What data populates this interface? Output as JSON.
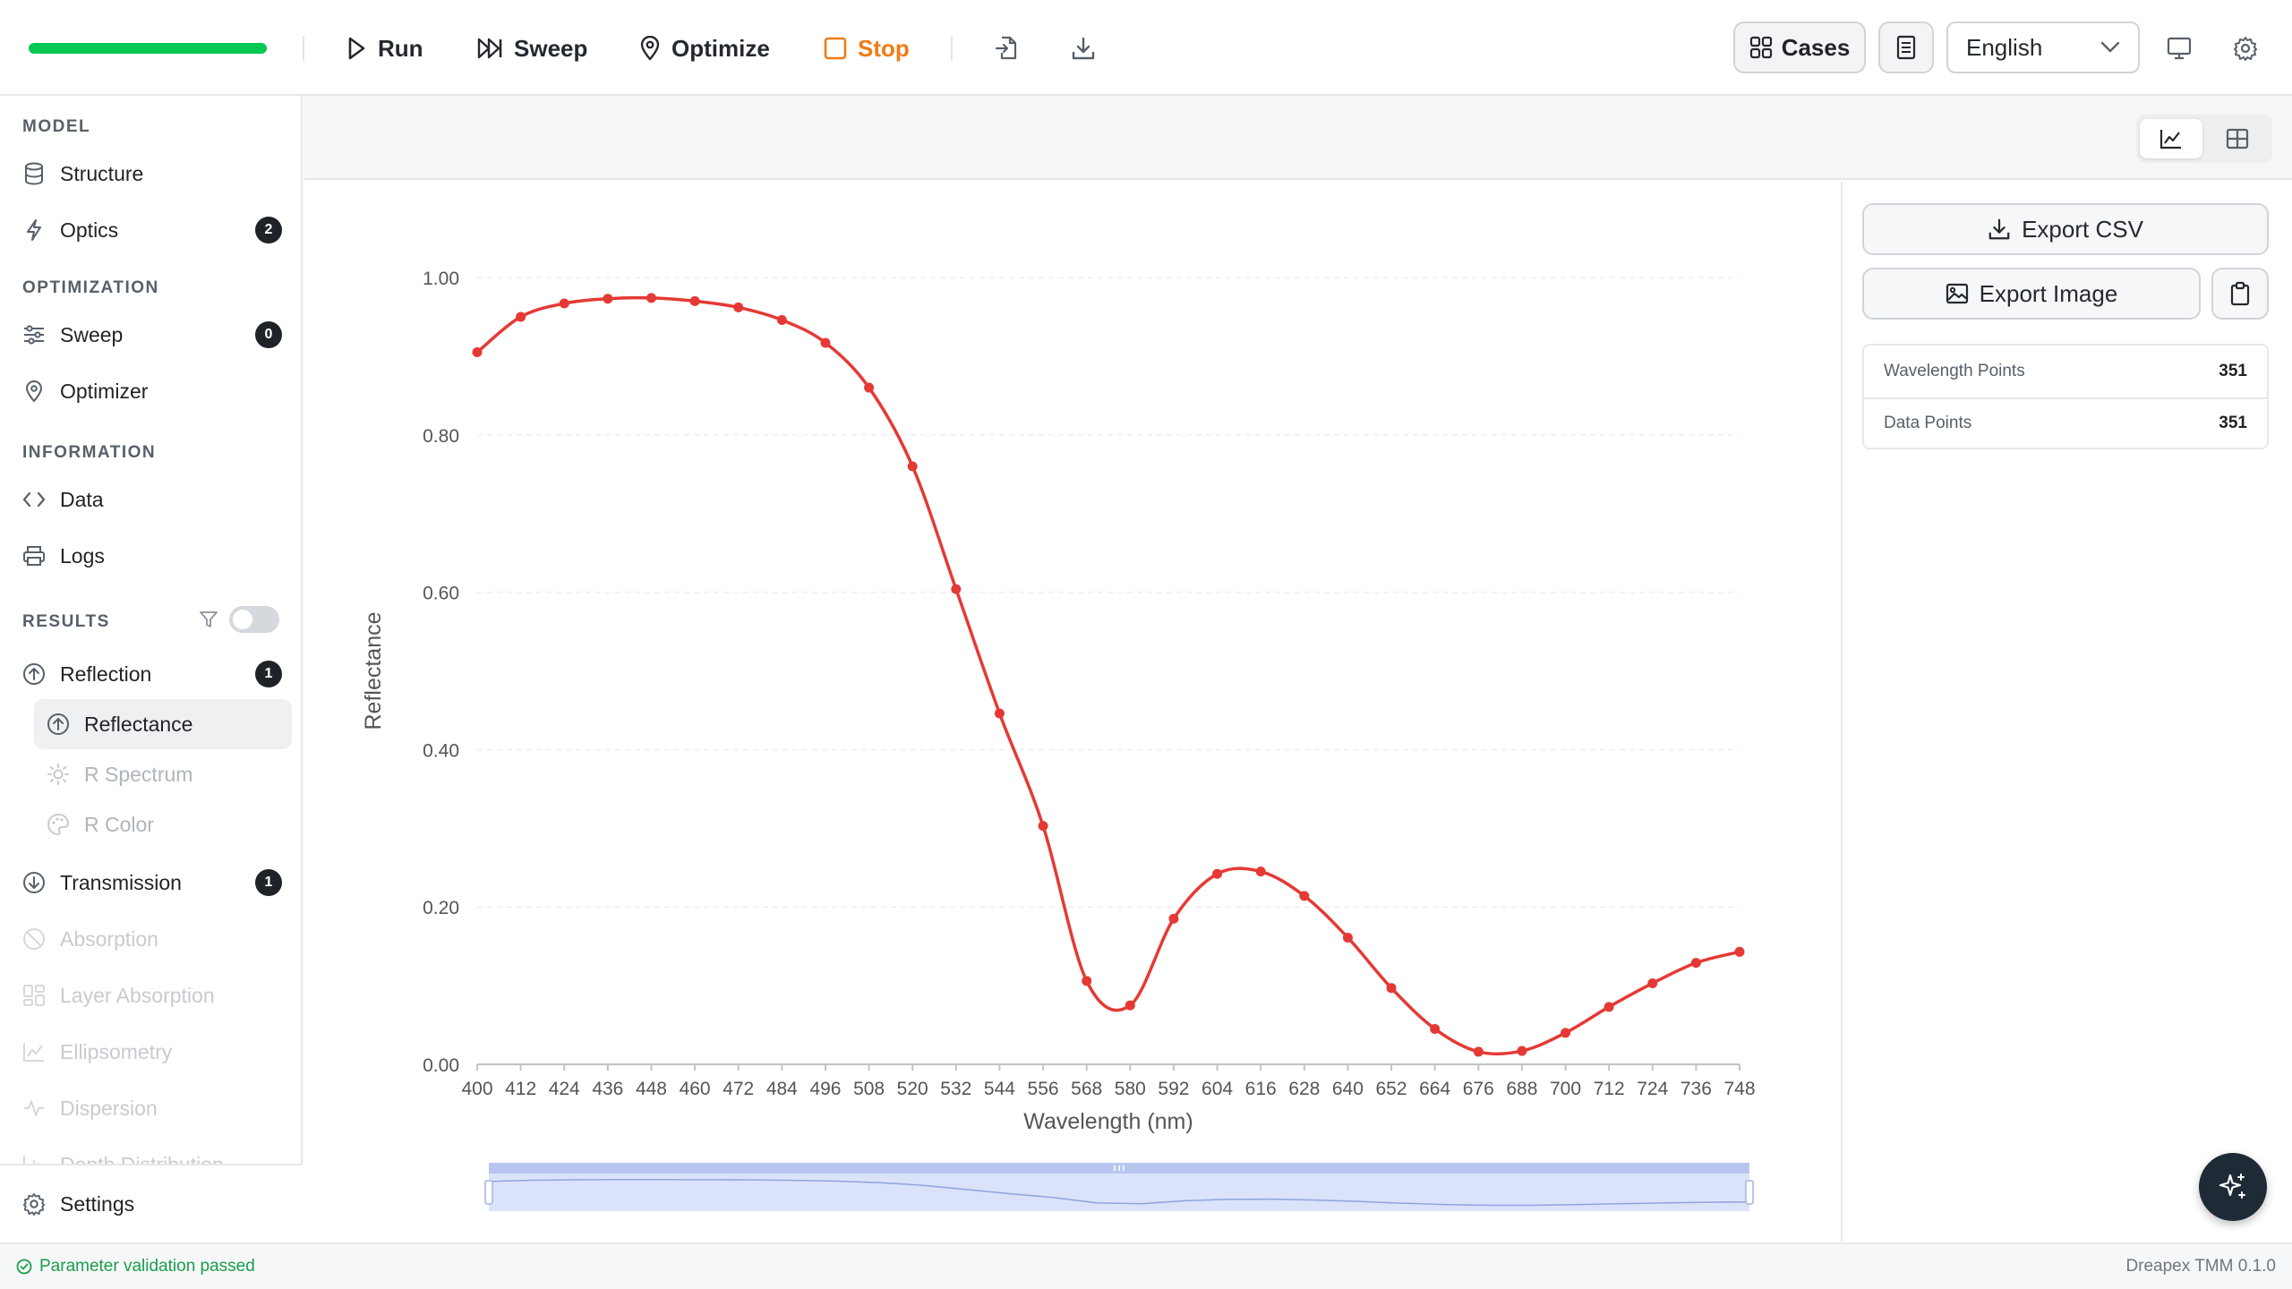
{
  "toolbar": {
    "run_label": "Run",
    "sweep_label": "Sweep",
    "optimize_label": "Optimize",
    "stop_label": "Stop",
    "cases_label": "Cases",
    "language": "English",
    "progress_fraction": 1.0,
    "colors": {
      "progress": "#00c853",
      "stop": "#f07b16"
    }
  },
  "sidebar": {
    "sections": {
      "model": "MODEL",
      "optimization": "OPTIMIZATION",
      "information": "INFORMATION",
      "results": "RESULTS"
    },
    "items": {
      "structure": "Structure",
      "optics": "Optics",
      "optics_badge": "2",
      "sweep": "Sweep",
      "sweep_badge": "0",
      "optimizer": "Optimizer",
      "data": "Data",
      "logs": "Logs",
      "reflection": "Reflection",
      "reflection_badge": "1",
      "reflectance": "Reflectance",
      "r_spectrum": "R Spectrum",
      "r_color": "R Color",
      "transmission": "Transmission",
      "transmission_badge": "1",
      "absorption": "Absorption",
      "layer_absorption": "Layer Absorption",
      "ellipsometry": "Ellipsometry",
      "dispersion": "Dispersion",
      "depth_distribution": "Depth Distribution"
    },
    "settings": "Settings"
  },
  "right_panel": {
    "export_csv": "Export CSV",
    "export_image": "Export Image",
    "stats": [
      {
        "label": "Wavelength Points",
        "value": "351"
      },
      {
        "label": "Data Points",
        "value": "351"
      }
    ]
  },
  "status": {
    "message": "Parameter validation passed",
    "version": "Dreapex TMM 0.1.0"
  },
  "chart_data": {
    "type": "line",
    "title": "",
    "xlabel": "Wavelength (nm)",
    "ylabel": "Reflectance",
    "xlim": [
      400,
      748
    ],
    "ylim": [
      0,
      1
    ],
    "yticks": [
      "0.00",
      "0.20",
      "0.40",
      "0.60",
      "0.80",
      "1.00"
    ],
    "grid": true,
    "color": "#e53935",
    "x": [
      400,
      412,
      424,
      436,
      448,
      460,
      472,
      484,
      496,
      508,
      520,
      532,
      544,
      556,
      568,
      580,
      592,
      604,
      616,
      628,
      640,
      652,
      664,
      676,
      688,
      700,
      712,
      724,
      736,
      748
    ],
    "series": [
      {
        "values": [
          0.905,
          0.95,
          0.967,
          0.973,
          0.974,
          0.97,
          0.962,
          0.946,
          0.917,
          0.86,
          0.76,
          0.604,
          0.446,
          0.303,
          0.106,
          0.075,
          0.185,
          0.242,
          0.245,
          0.214,
          0.161,
          0.097,
          0.045,
          0.016,
          0.017,
          0.04,
          0.073,
          0.103,
          0.129,
          0.143
        ]
      }
    ],
    "zoom_slider": {
      "start_fraction": 0.0,
      "end_fraction": 1.0
    }
  }
}
